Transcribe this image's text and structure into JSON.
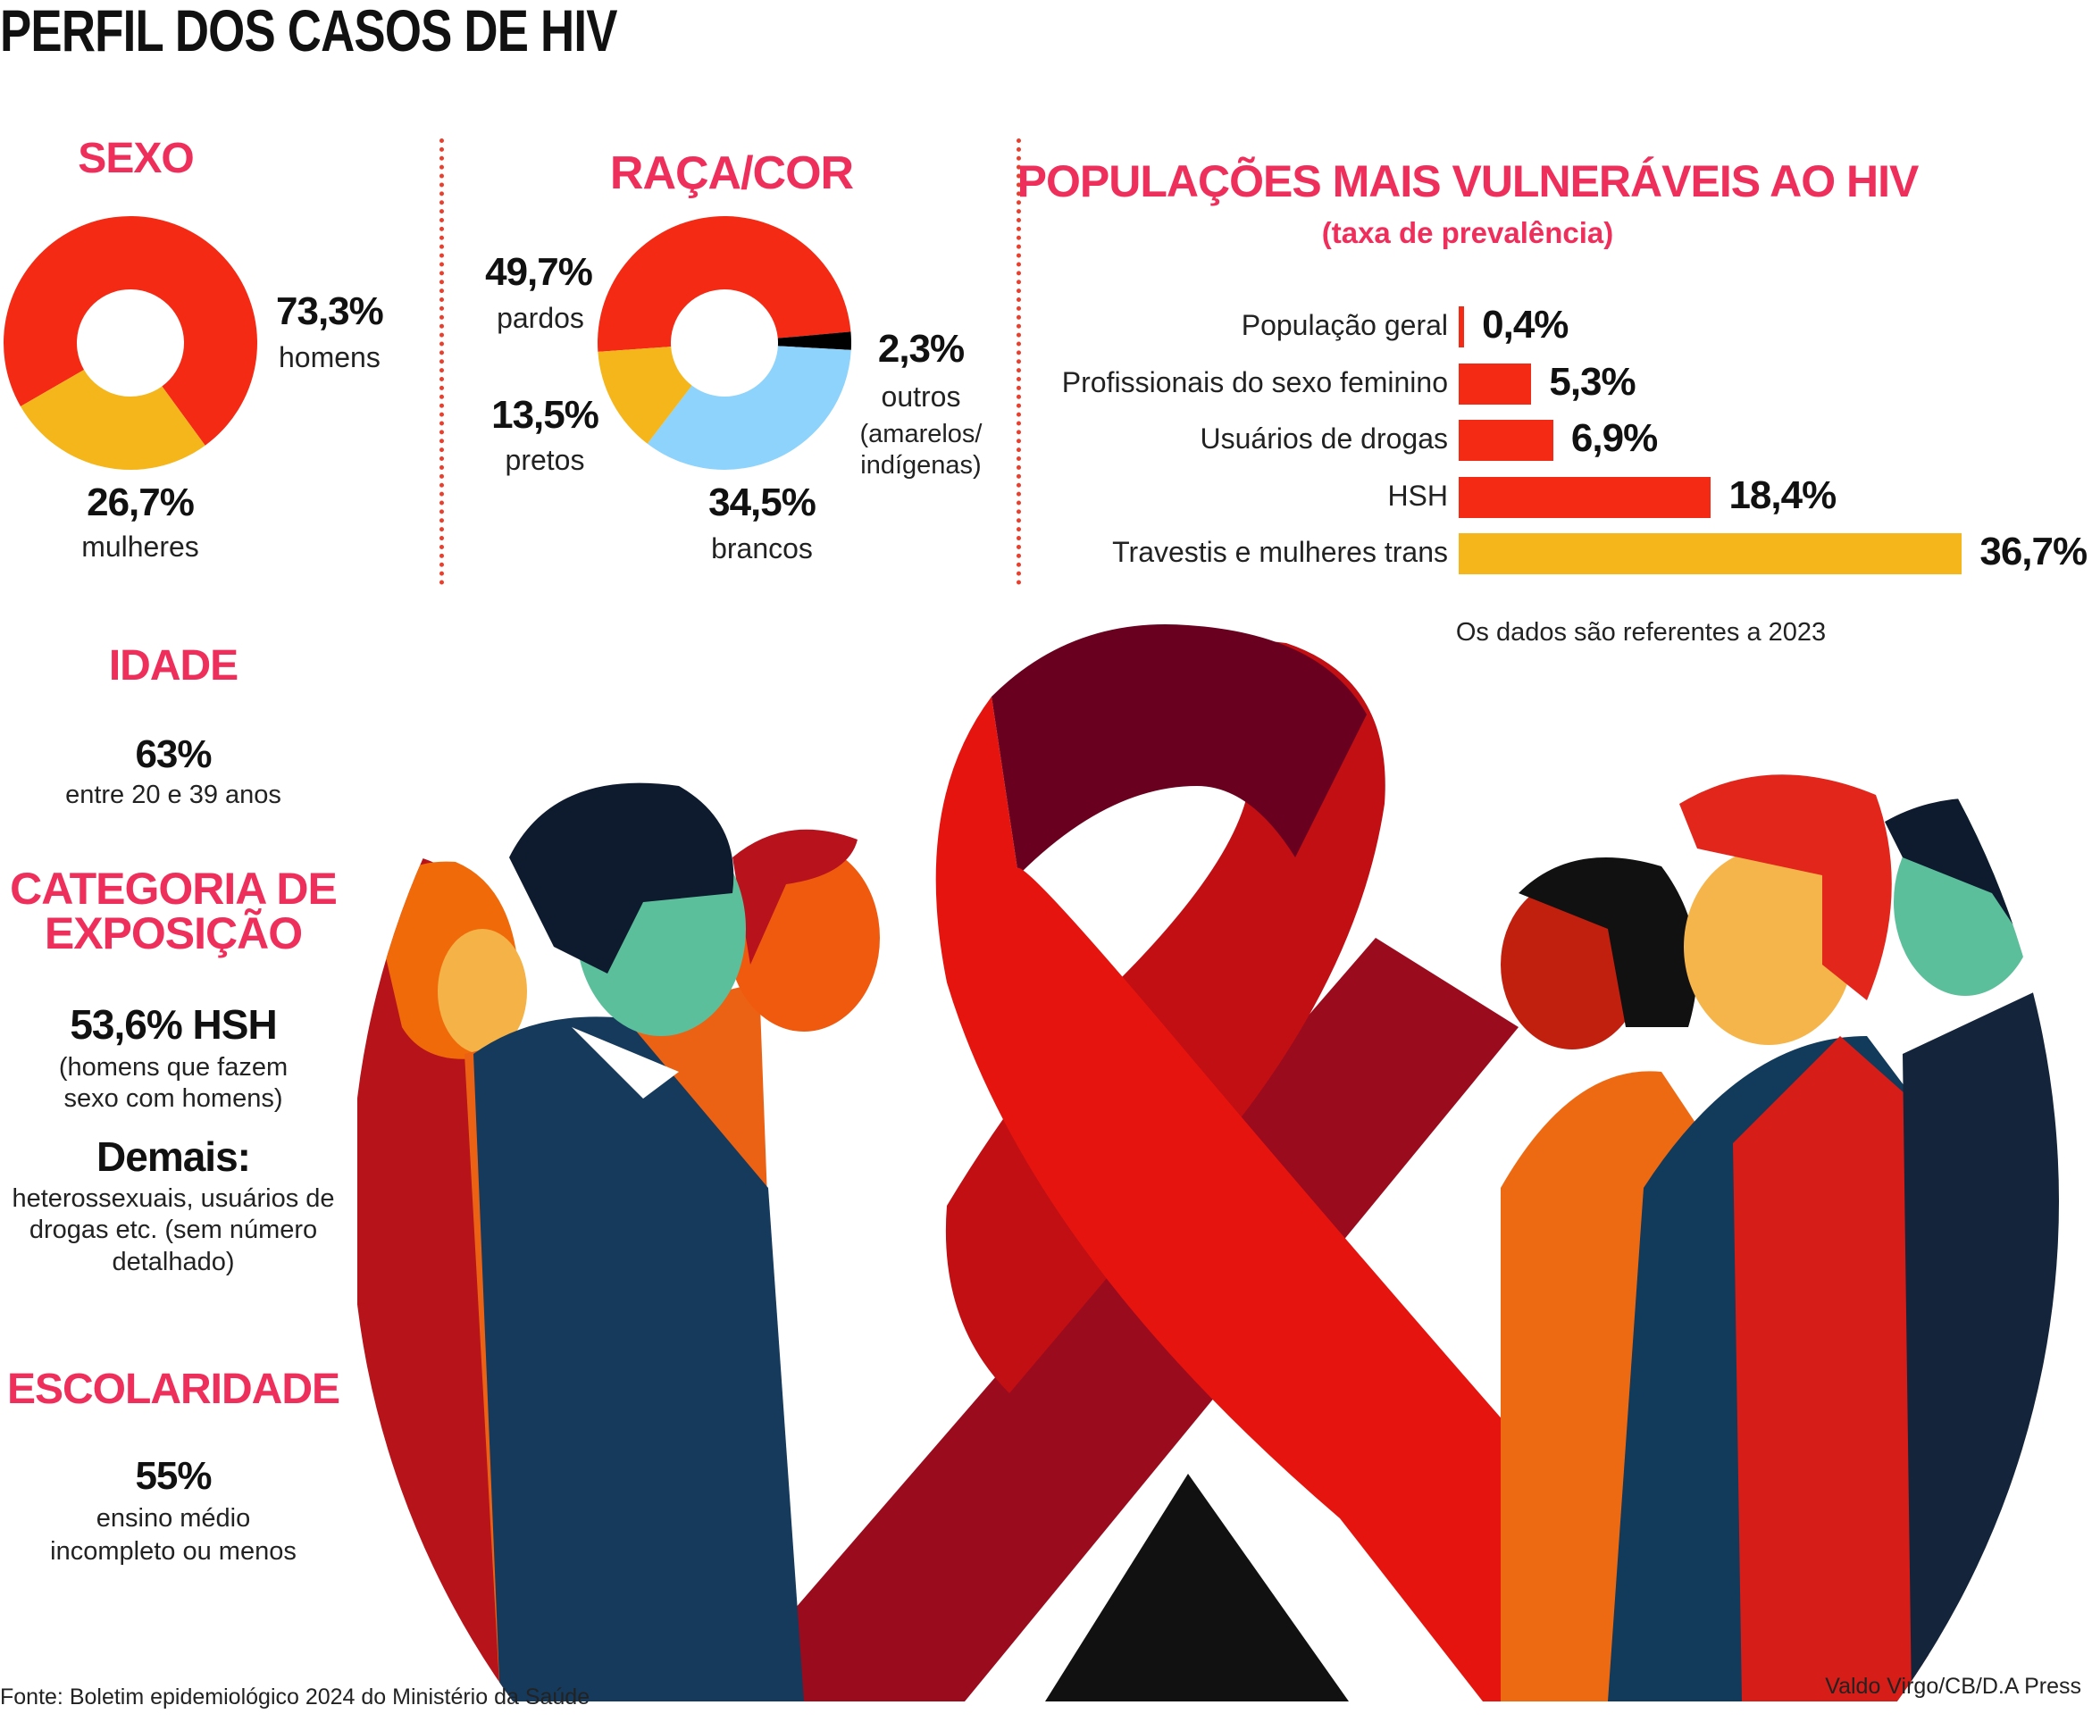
{
  "title": "PERFIL DOS CASOS DE HIV",
  "colors": {
    "red": "#f42a14",
    "yellow": "#f5b61c",
    "blue": "#8dd3fb",
    "black": "#000000",
    "heading": "#ef2f5b"
  },
  "sexo": {
    "heading": "SEXO",
    "chart_data": {
      "type": "pie",
      "donut": true,
      "slices": [
        {
          "label": "homens",
          "value": 73.3,
          "value_label": "73,3%",
          "color": "#f42a14"
        },
        {
          "label": "mulheres",
          "value": 26.7,
          "value_label": "26,7%",
          "color": "#f5b61c"
        }
      ]
    }
  },
  "raca": {
    "heading": "RAÇA/COR",
    "chart_data": {
      "type": "pie",
      "donut": true,
      "slices": [
        {
          "label": "pardos",
          "value": 49.7,
          "value_label": "49,7%",
          "color": "#f42a14"
        },
        {
          "label": "outros",
          "sublabel_1": "(amarelos/",
          "sublabel_2": "indígenas)",
          "value": 2.3,
          "value_label": "2,3%",
          "color": "#000000"
        },
        {
          "label": "brancos",
          "value": 34.5,
          "value_label": "34,5%",
          "color": "#8dd3fb"
        },
        {
          "label": "pretos",
          "value": 13.5,
          "value_label": "13,5%",
          "color": "#f5b61c"
        }
      ]
    }
  },
  "populacoes": {
    "heading": "POPULAÇÕES MAIS VULNERÁVEIS AO HIV",
    "subheading": "(taxa de prevalência)",
    "note": "Os dados são referentes a 2023",
    "chart_data": {
      "type": "bar",
      "orientation": "horizontal",
      "categories": [
        "População geral",
        "Profissionais do sexo feminino",
        "Usuários de drogas",
        "HSH",
        "Travestis e mulheres trans"
      ],
      "values": [
        0.4,
        5.3,
        6.9,
        18.4,
        36.7
      ],
      "value_labels": [
        "0,4%",
        "5,3%",
        "6,9%",
        "18,4%",
        "36,7%"
      ],
      "colors": [
        "#f42a14",
        "#f42a14",
        "#f42a14",
        "#f42a14",
        "#f5b61c"
      ]
    }
  },
  "idade": {
    "heading": "IDADE",
    "value": "63%",
    "desc": "entre 20 e 39 anos"
  },
  "categoria": {
    "heading_1": "CATEGORIA DE",
    "heading_2": "EXPOSIÇÃO",
    "value": "53,6% HSH",
    "desc_1": "(homens que fazem",
    "desc_2": "sexo com homens)",
    "demais": "Demais:",
    "demais_1": "heterossexuais, usuários de",
    "demais_2": "drogas etc. (sem número",
    "demais_3": "detalhado)"
  },
  "escolaridade": {
    "heading": "ESCOLARIDADE",
    "value": "55%",
    "desc_1": "ensino médio",
    "desc_2": "incompleto ou menos"
  },
  "source": "Fonte: Boletim epidemiológico 2024 do Ministério da Saúde",
  "credit": "Valdo Virgo/CB/D.A Press"
}
